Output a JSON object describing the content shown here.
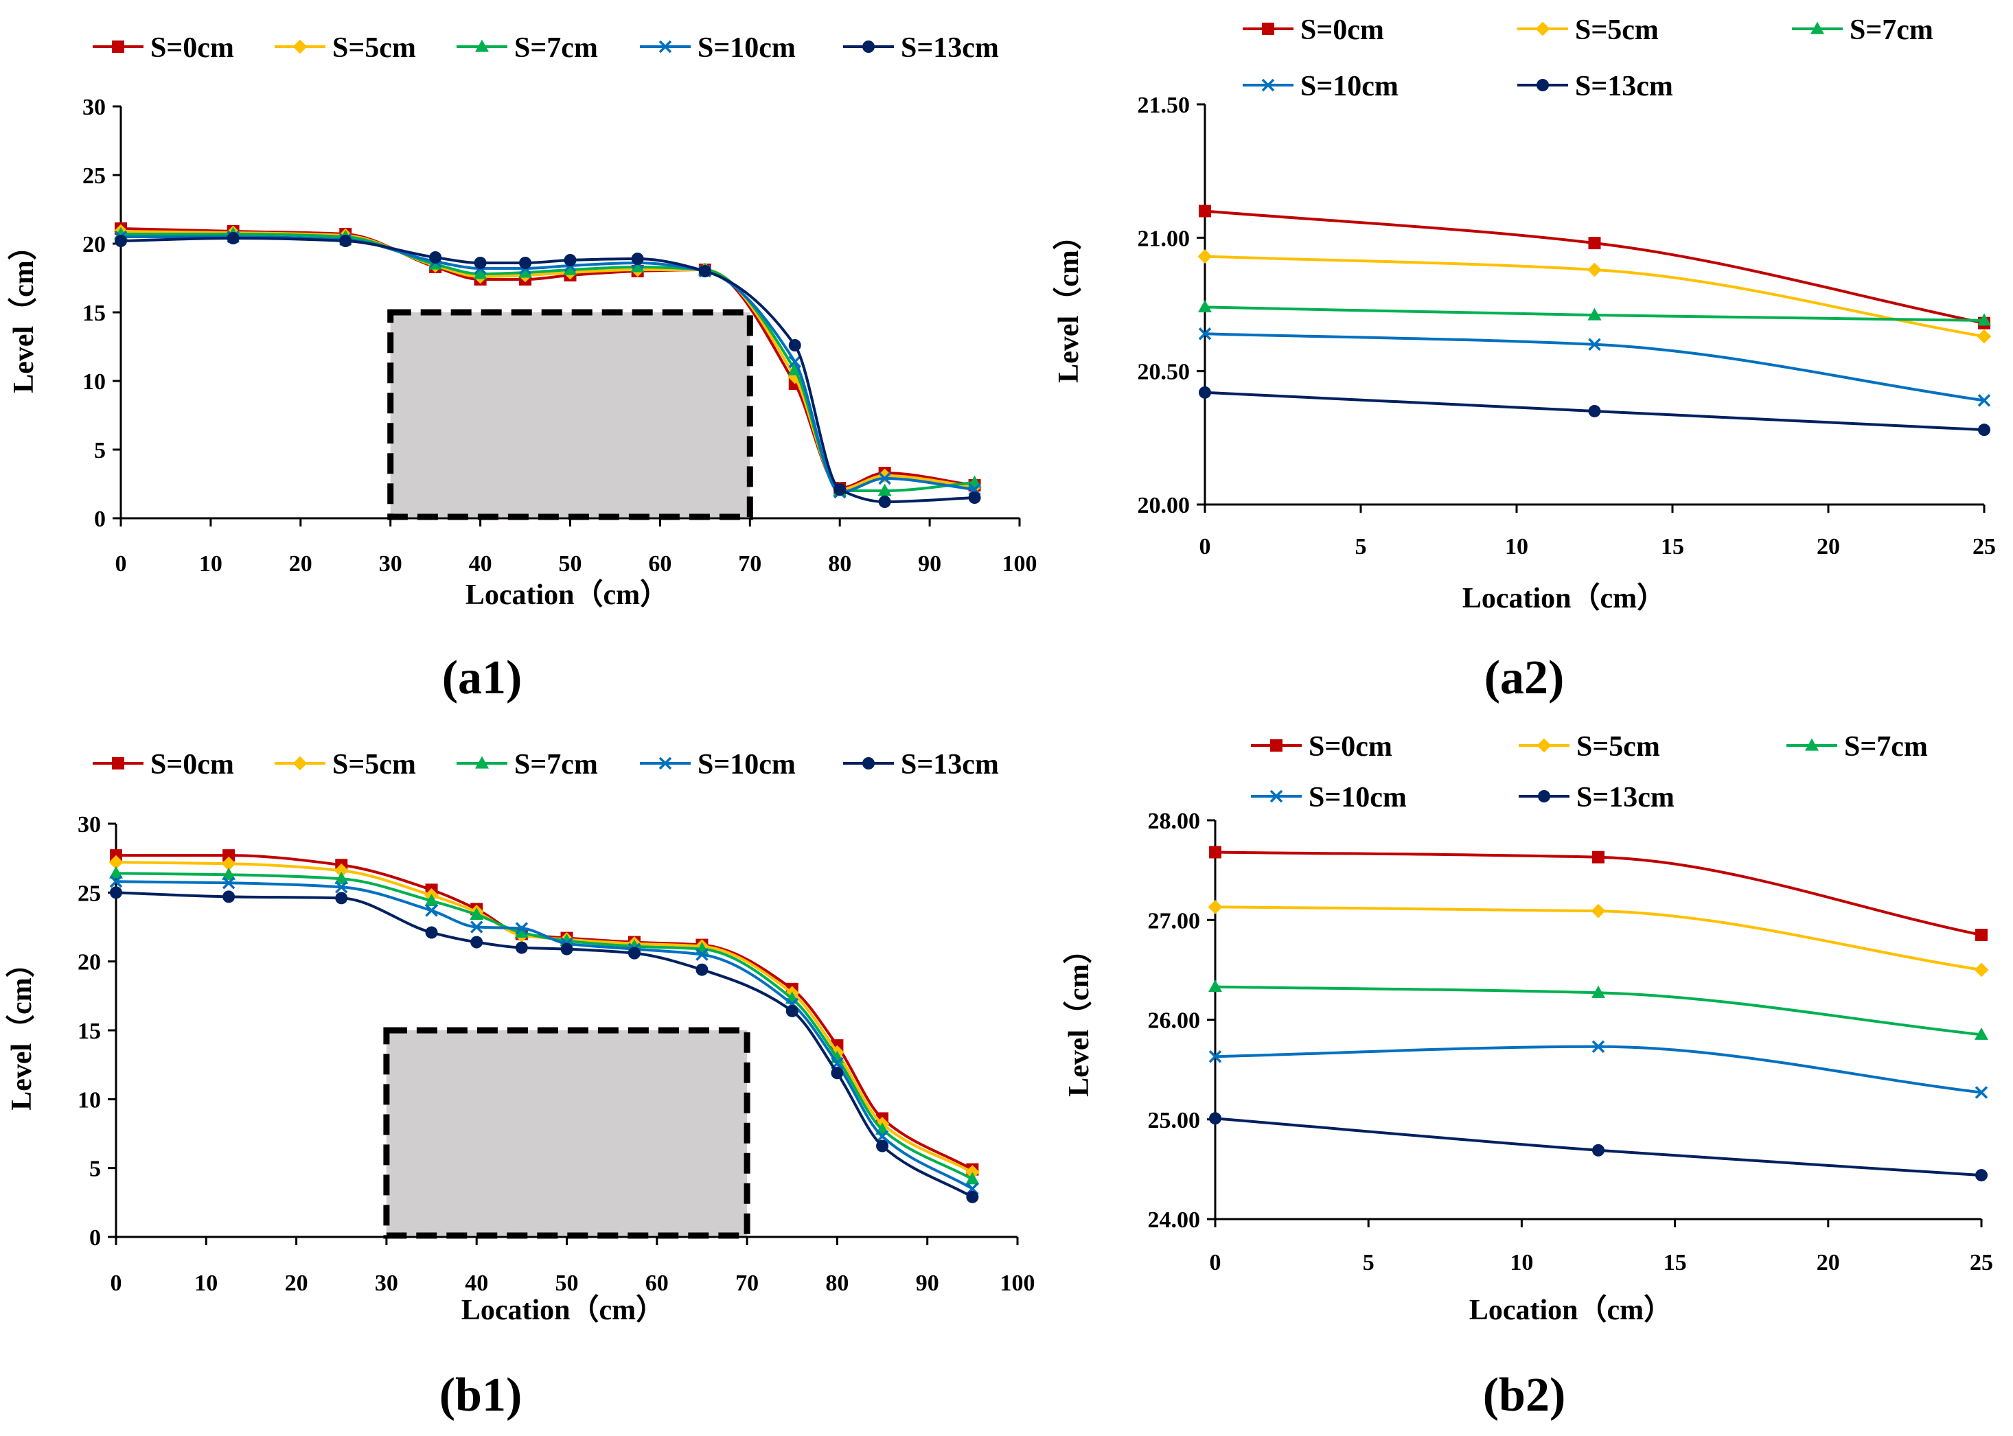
{
  "colors": {
    "S=0cm": "#C00000",
    "S=5cm": "#FFC000",
    "S=7cm": "#00B050",
    "S=10cm": "#0070C0",
    "S=13cm": "#002060"
  },
  "chart_data": [
    {
      "id": "a1",
      "type": "line",
      "panel_label": "(a1)",
      "xlabel": "Location（cm）",
      "ylabel": "Level（cm）",
      "xlim": [
        0,
        100
      ],
      "ylim": [
        0,
        30
      ],
      "xticks": [
        0,
        10,
        20,
        30,
        40,
        50,
        60,
        70,
        80,
        90,
        100
      ],
      "yticks": [
        0,
        5,
        10,
        15,
        20,
        25,
        30
      ],
      "x_tick_labels": [
        "0",
        "10",
        "20",
        "30",
        "40",
        "50",
        "60",
        "70",
        "80",
        "90",
        "100"
      ],
      "y_tick_labels": [
        "0",
        "5",
        "10",
        "15",
        "20",
        "25",
        "30"
      ],
      "legend_position": "top",
      "obstacle": {
        "x": [
          30,
          70
        ],
        "y": [
          0,
          15
        ]
      },
      "x": [
        0,
        12.5,
        25,
        35,
        40,
        45,
        50,
        57.5,
        65,
        75,
        80,
        85,
        95
      ],
      "series": [
        {
          "name": "S=0cm",
          "marker": "square",
          "values": [
            21.1,
            20.9,
            20.7,
            18.3,
            17.4,
            17.4,
            17.7,
            18.0,
            18.1,
            9.8,
            2.2,
            3.3,
            2.4
          ]
        },
        {
          "name": "S=5cm",
          "marker": "diamond",
          "values": [
            20.9,
            20.8,
            20.6,
            18.4,
            17.6,
            17.7,
            17.9,
            18.1,
            18.1,
            10.3,
            2.1,
            3.1,
            2.3
          ]
        },
        {
          "name": "S=7cm",
          "marker": "triangle",
          "values": [
            20.7,
            20.7,
            20.5,
            18.5,
            17.8,
            17.9,
            18.1,
            18.3,
            18.1,
            10.8,
            2.0,
            2.0,
            2.6
          ]
        },
        {
          "name": "S=10cm",
          "marker": "x",
          "values": [
            20.5,
            20.5,
            20.3,
            18.7,
            18.2,
            18.2,
            18.4,
            18.6,
            18.0,
            11.4,
            1.9,
            2.9,
            2.1
          ]
        },
        {
          "name": "S=13cm",
          "marker": "circle",
          "values": [
            20.2,
            20.4,
            20.2,
            19.0,
            18.6,
            18.6,
            18.8,
            18.9,
            18.0,
            12.6,
            2.1,
            1.2,
            1.5
          ]
        }
      ]
    },
    {
      "id": "a2",
      "type": "line",
      "panel_label": "(a2)",
      "xlabel": "Location（cm）",
      "ylabel": "Level（cm）",
      "xlim": [
        0,
        25
      ],
      "ylim": [
        20.0,
        21.5
      ],
      "xticks": [
        0,
        5,
        10,
        15,
        20,
        25
      ],
      "yticks": [
        20.0,
        20.5,
        21.0,
        21.5
      ],
      "x_tick_labels": [
        "0",
        "5",
        "10",
        "15",
        "20",
        "25"
      ],
      "y_tick_labels": [
        "20.00",
        "20.50",
        "21.00",
        "21.50"
      ],
      "legend_position": "top",
      "x": [
        0,
        12.5,
        25
      ],
      "series": [
        {
          "name": "S=0cm",
          "marker": "square",
          "values": [
            21.1,
            20.98,
            20.68
          ]
        },
        {
          "name": "S=5cm",
          "marker": "diamond",
          "values": [
            20.93,
            20.88,
            20.63
          ]
        },
        {
          "name": "S=7cm",
          "marker": "triangle",
          "values": [
            20.74,
            20.71,
            20.69
          ]
        },
        {
          "name": "S=10cm",
          "marker": "x",
          "values": [
            20.64,
            20.6,
            20.39
          ]
        },
        {
          "name": "S=13cm",
          "marker": "circle",
          "values": [
            20.42,
            20.35,
            20.28
          ]
        }
      ]
    },
    {
      "id": "b1",
      "type": "line",
      "panel_label": "(b1)",
      "xlabel": "Location（cm）",
      "ylabel": "Level（cm）",
      "xlim": [
        0,
        100
      ],
      "ylim": [
        0,
        30
      ],
      "xticks": [
        0,
        10,
        20,
        30,
        40,
        50,
        60,
        70,
        80,
        90,
        100
      ],
      "yticks": [
        0,
        5,
        10,
        15,
        20,
        25,
        30
      ],
      "x_tick_labels": [
        "0",
        "10",
        "20",
        "30",
        "40",
        "50",
        "60",
        "70",
        "80",
        "90",
        "100"
      ],
      "y_tick_labels": [
        "0",
        "5",
        "10",
        "15",
        "20",
        "25",
        "30"
      ],
      "legend_position": "top",
      "obstacle": {
        "x": [
          30,
          70
        ],
        "y": [
          0,
          15
        ]
      },
      "x": [
        0,
        12.5,
        25,
        35,
        40,
        45,
        50,
        57.5,
        65,
        75,
        80,
        85,
        95
      ],
      "series": [
        {
          "name": "S=0cm",
          "marker": "square",
          "values": [
            27.7,
            27.7,
            27.0,
            25.2,
            23.8,
            22.0,
            21.7,
            21.4,
            21.2,
            18.0,
            13.9,
            8.6,
            4.9
          ]
        },
        {
          "name": "S=5cm",
          "marker": "diamond",
          "values": [
            27.2,
            27.1,
            26.6,
            24.8,
            23.6,
            21.9,
            21.6,
            21.3,
            21.1,
            17.7,
            13.4,
            8.2,
            4.7
          ]
        },
        {
          "name": "S=7cm",
          "marker": "triangle",
          "values": [
            26.4,
            26.3,
            26.0,
            24.4,
            23.4,
            22.1,
            21.5,
            21.1,
            20.9,
            17.3,
            13.0,
            7.8,
            4.2
          ]
        },
        {
          "name": "S=10cm",
          "marker": "x",
          "values": [
            25.8,
            25.7,
            25.4,
            23.7,
            22.5,
            22.4,
            21.3,
            20.9,
            20.5,
            16.9,
            12.6,
            7.3,
            3.5
          ]
        },
        {
          "name": "S=13cm",
          "marker": "circle",
          "values": [
            25.0,
            24.7,
            24.6,
            22.1,
            21.4,
            21.0,
            20.9,
            20.6,
            19.4,
            16.4,
            11.9,
            6.6,
            2.9
          ]
        }
      ]
    },
    {
      "id": "b2",
      "type": "line",
      "panel_label": "(b2)",
      "xlabel": "Location（cm）",
      "ylabel": "Level（cm）",
      "xlim": [
        0,
        25
      ],
      "ylim": [
        24.0,
        28.0
      ],
      "xticks": [
        0,
        5,
        10,
        15,
        20,
        25
      ],
      "yticks": [
        24.0,
        25.0,
        26.0,
        27.0,
        28.0
      ],
      "x_tick_labels": [
        "0",
        "5",
        "10",
        "15",
        "20",
        "25"
      ],
      "y_tick_labels": [
        "24.00",
        "25.00",
        "26.00",
        "27.00",
        "28.00"
      ],
      "legend_position": "top",
      "x": [
        0,
        12.5,
        25
      ],
      "series": [
        {
          "name": "S=0cm",
          "marker": "square",
          "values": [
            27.68,
            27.63,
            26.85
          ]
        },
        {
          "name": "S=5cm",
          "marker": "diamond",
          "values": [
            27.13,
            27.09,
            26.5
          ]
        },
        {
          "name": "S=7cm",
          "marker": "triangle",
          "values": [
            26.33,
            26.27,
            25.85
          ]
        },
        {
          "name": "S=10cm",
          "marker": "x",
          "values": [
            25.63,
            25.73,
            25.27
          ]
        },
        {
          "name": "S=13cm",
          "marker": "circle",
          "values": [
            25.01,
            24.69,
            24.44
          ]
        }
      ]
    }
  ]
}
